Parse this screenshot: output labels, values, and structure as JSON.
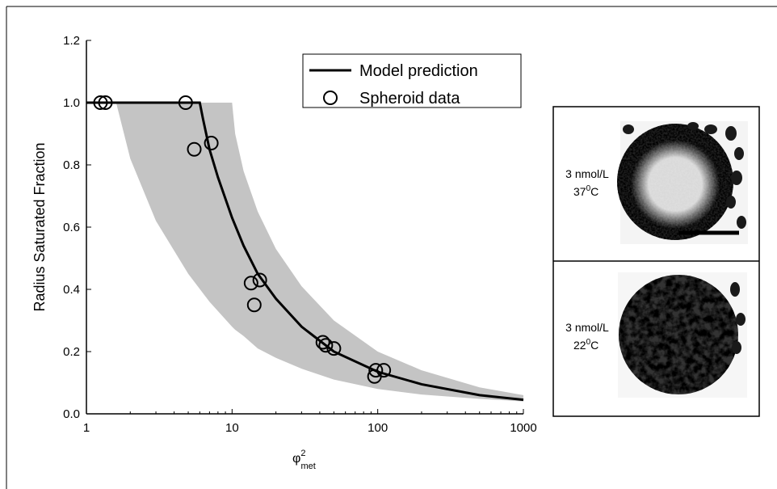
{
  "chart_data": {
    "type": "line",
    "y_label": "Radius Saturated Fraction",
    "x_label": {
      "symbol": "φ",
      "sup": "2",
      "sub": "met"
    },
    "xlim": [
      1,
      1000
    ],
    "xticks": [
      1,
      10,
      100,
      1000
    ],
    "log_x": true,
    "ylim": [
      0,
      1.2
    ],
    "yticks": [
      {
        "value": 0,
        "label": "0.0"
      },
      {
        "value": 0.2,
        "label": "0.2"
      },
      {
        "value": 0.4,
        "label": "0.4"
      },
      {
        "value": 0.6,
        "label": "0.6"
      },
      {
        "value": 0.8,
        "label": "0.8"
      },
      {
        "value": 1.0,
        "label": "1.0"
      },
      {
        "value": 1.2,
        "label": "1.2"
      }
    ],
    "legend_position": "upper right",
    "band": {
      "color": "#c4c4c4",
      "x": [
        1.6,
        2,
        3,
        5,
        7,
        10,
        10.5,
        12,
        15,
        20,
        30,
        50,
        100,
        200,
        500,
        1000
      ],
      "lower": [
        1.0,
        0.82,
        0.62,
        0.45,
        0.36,
        0.28,
        0.27,
        0.25,
        0.21,
        0.18,
        0.145,
        0.11,
        0.08,
        0.062,
        0.048,
        0.04
      ],
      "upper": [
        1.0,
        1.0,
        1.0,
        1.0,
        1.0,
        1.0,
        0.9,
        0.78,
        0.65,
        0.53,
        0.41,
        0.3,
        0.2,
        0.14,
        0.085,
        0.06
      ]
    },
    "series": [
      {
        "name": "Model prediction",
        "type": "line",
        "color": "#000000",
        "x": [
          1,
          6,
          6.3,
          7,
          8,
          10,
          12,
          15,
          20,
          30,
          50,
          100,
          200,
          500,
          1000
        ],
        "values": [
          1.0,
          1.0,
          0.95,
          0.85,
          0.76,
          0.63,
          0.54,
          0.45,
          0.37,
          0.28,
          0.2,
          0.135,
          0.095,
          0.06,
          0.045
        ]
      },
      {
        "name": "Spheroid data",
        "type": "scatter",
        "color": "#000000",
        "x": [
          1.25,
          1.35,
          4.8,
          5.5,
          7.2,
          13.5,
          15.5,
          14.2,
          42,
          44,
          50,
          95,
          97,
          110
        ],
        "values": [
          1.0,
          1.0,
          1.0,
          0.85,
          0.87,
          0.42,
          0.43,
          0.35,
          0.23,
          0.22,
          0.21,
          0.12,
          0.14,
          0.14
        ]
      }
    ],
    "panels": [
      {
        "concentration": "3 nmol/L",
        "temp": "37",
        "temp_sup": "0",
        "temp_unit": "C"
      },
      {
        "concentration": "3 nmol/L",
        "temp": "22",
        "temp_sup": "0",
        "temp_unit": "C"
      }
    ]
  }
}
